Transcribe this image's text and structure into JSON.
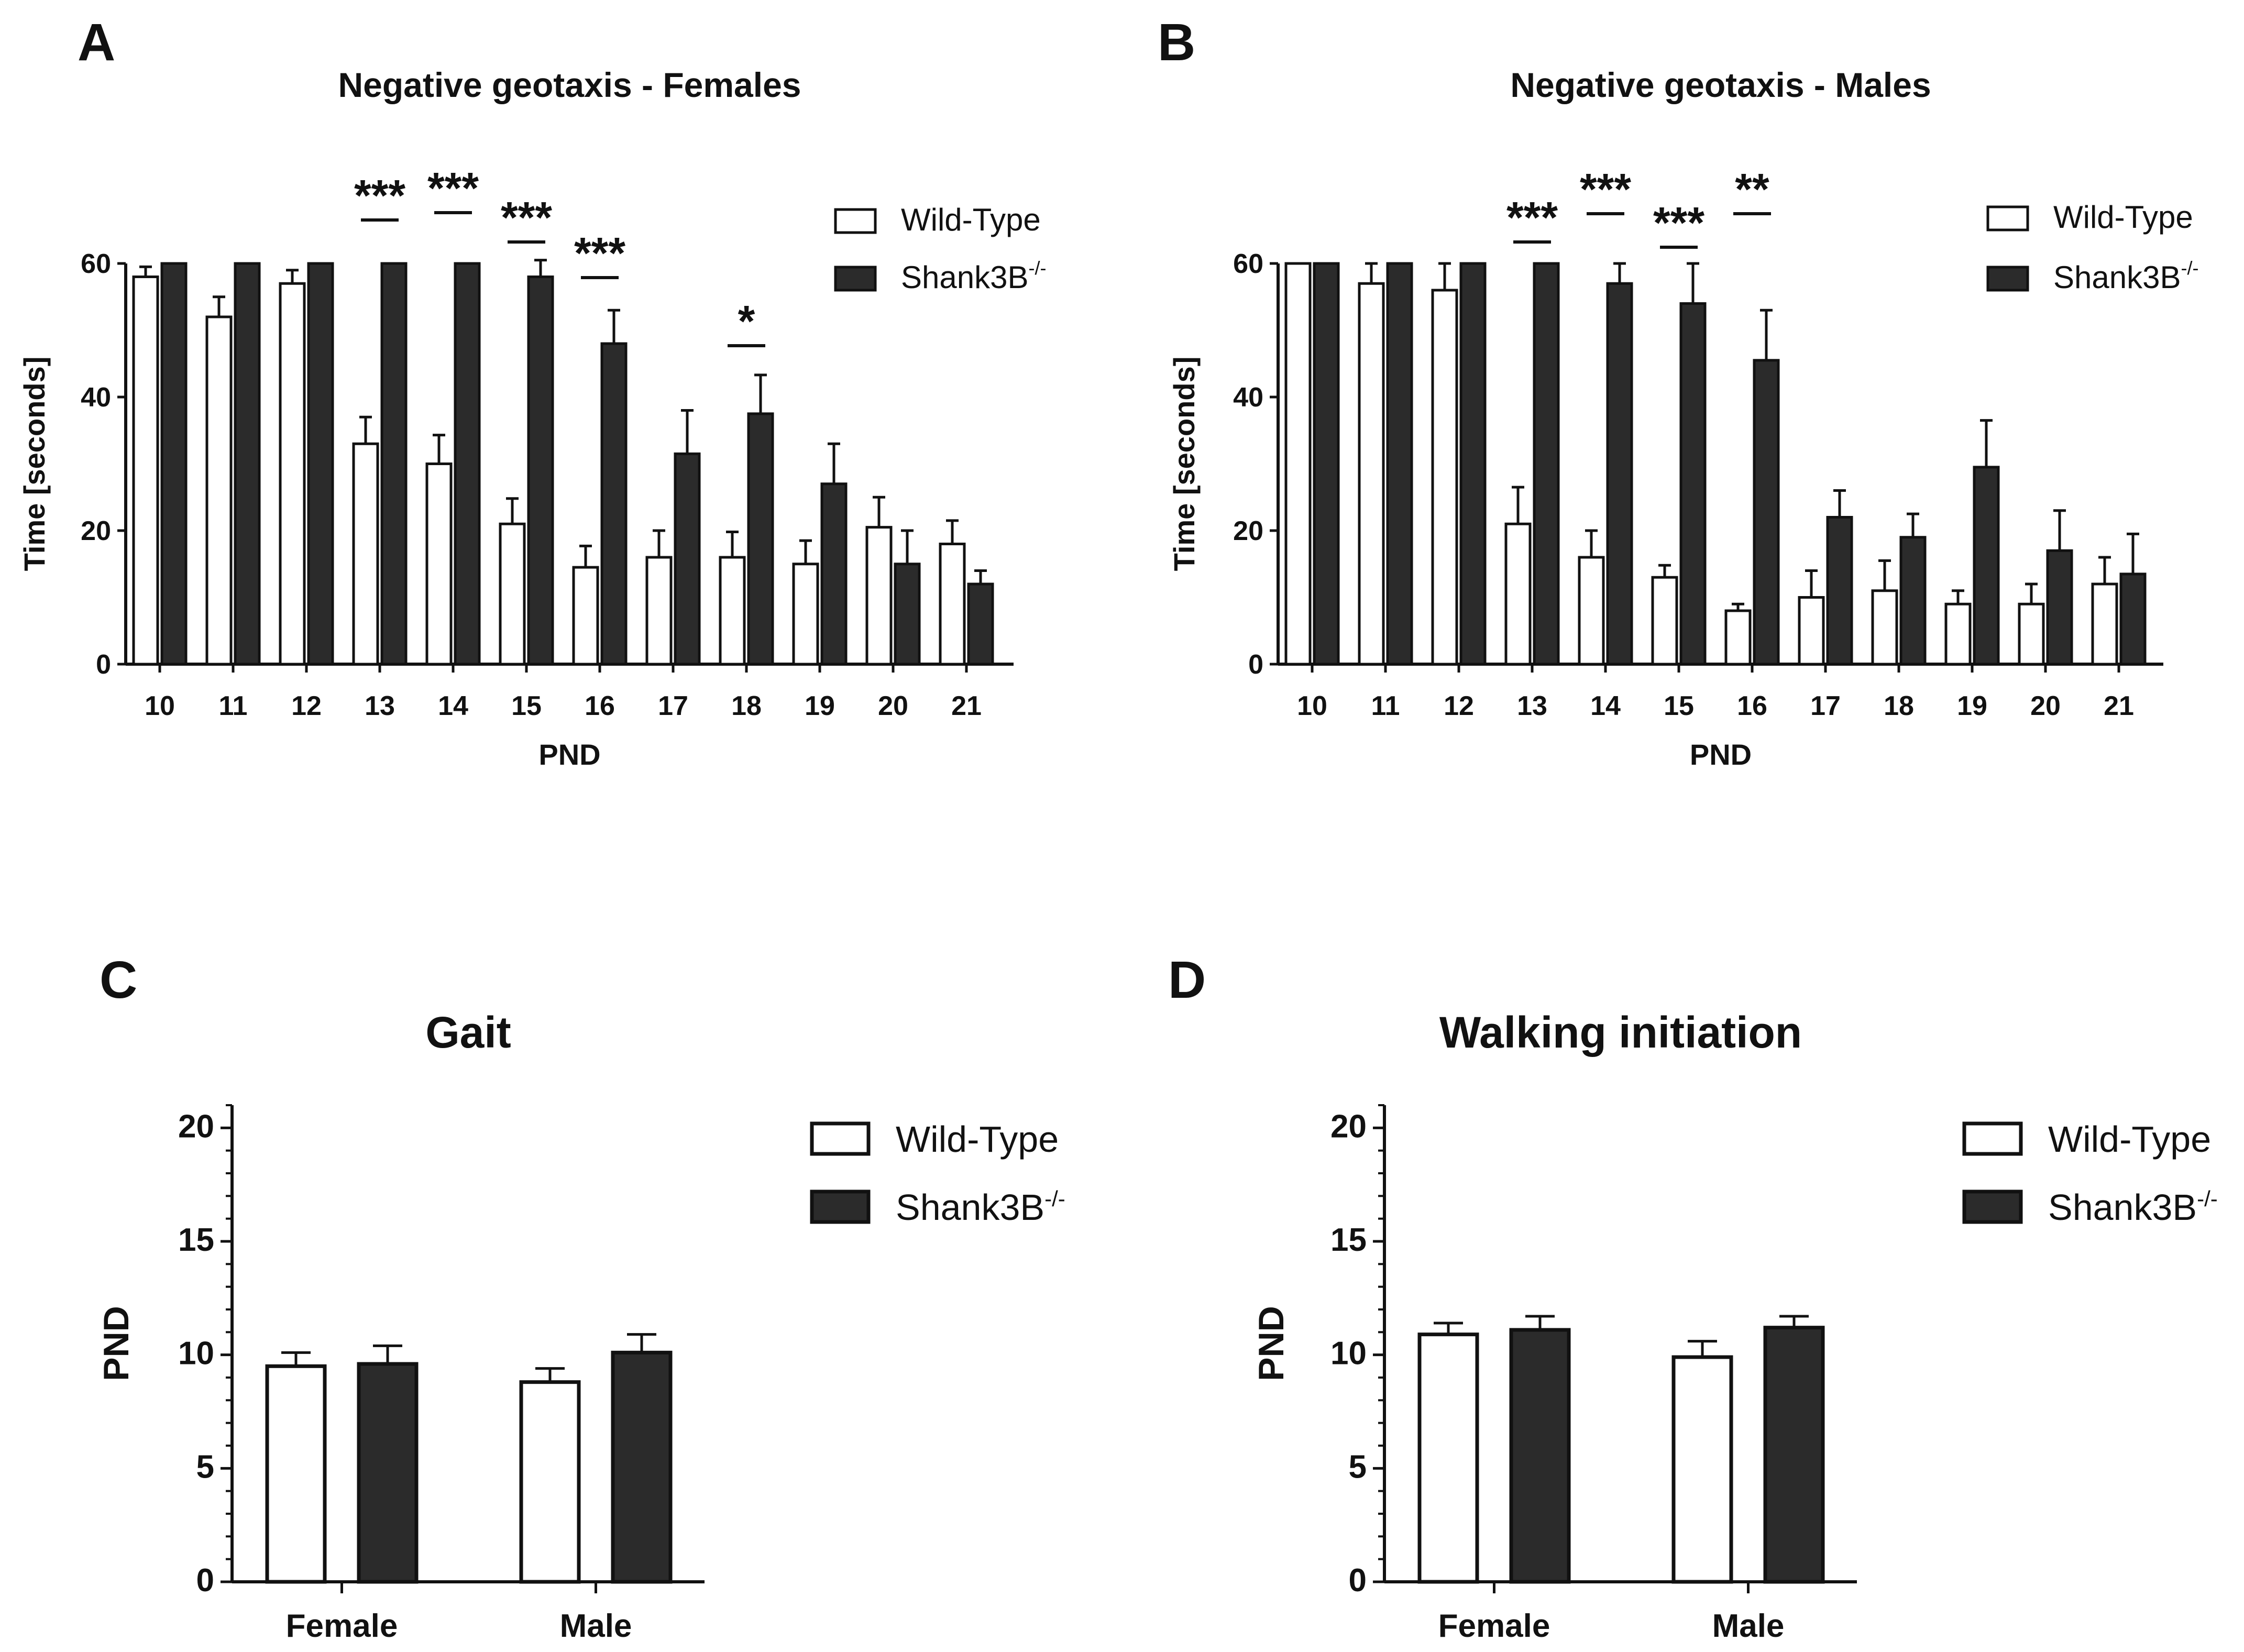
{
  "chart_data": [
    {
      "panel": "A",
      "type": "bar",
      "title": "Negative geotaxis - Females",
      "xlabel": "PND",
      "ylabel": "Time [seconds]",
      "ylim": [
        0,
        60
      ],
      "yticks": [
        0,
        20,
        40,
        60
      ],
      "categories": [
        "10",
        "11",
        "12",
        "13",
        "14",
        "15",
        "16",
        "17",
        "18",
        "19",
        "20",
        "21"
      ],
      "series": [
        {
          "name": "Wild-Type",
          "color": "#ffffff",
          "values": [
            58,
            52,
            57,
            33,
            30,
            21,
            14.5,
            16,
            16,
            15,
            20.5,
            18
          ],
          "errors": [
            1.5,
            3,
            2,
            4,
            4.3,
            3.8,
            3.2,
            4,
            3.8,
            3.5,
            4.5,
            3.5
          ]
        },
        {
          "name": "Shank3B",
          "name_sup": "-/-",
          "color": "#2b2b2b",
          "values": [
            60,
            60,
            60,
            60,
            60,
            58,
            48,
            31.5,
            37.5,
            27,
            15,
            12
          ],
          "errors": [
            0,
            0,
            0,
            0,
            0,
            2.5,
            5,
            6.5,
            5.8,
            6,
            5,
            2
          ]
        }
      ],
      "significance": [
        {
          "category": "13",
          "label": "***"
        },
        {
          "category": "14",
          "label": "***"
        },
        {
          "category": "15",
          "label": "***"
        },
        {
          "category": "16",
          "label": "***"
        },
        {
          "category": "18",
          "label": "*"
        }
      ]
    },
    {
      "panel": "B",
      "type": "bar",
      "title": "Negative geotaxis - Males",
      "xlabel": "PND",
      "ylabel": "Time [seconds]",
      "ylim": [
        0,
        60
      ],
      "yticks": [
        0,
        20,
        40,
        60
      ],
      "categories": [
        "10",
        "11",
        "12",
        "13",
        "14",
        "15",
        "16",
        "17",
        "18",
        "19",
        "20",
        "21"
      ],
      "series": [
        {
          "name": "Wild-Type",
          "color": "#ffffff",
          "values": [
            60,
            57,
            56,
            21,
            16,
            13,
            8,
            10,
            11,
            9,
            9,
            12
          ],
          "errors": [
            0,
            3,
            4,
            5.5,
            4,
            1.8,
            1,
            4,
            4.5,
            2,
            3,
            4
          ]
        },
        {
          "name": "Shank3B",
          "name_sup": "-/-",
          "color": "#2b2b2b",
          "values": [
            60,
            60,
            60,
            60,
            57,
            54,
            45.5,
            22,
            19,
            29.5,
            17,
            13.5
          ],
          "errors": [
            0,
            0,
            0,
            0,
            3,
            6,
            7.5,
            4,
            3.5,
            7,
            6,
            6
          ]
        }
      ],
      "significance": [
        {
          "category": "13",
          "label": "***"
        },
        {
          "category": "14",
          "label": "***"
        },
        {
          "category": "15",
          "label": "***"
        },
        {
          "category": "16",
          "label": "**"
        }
      ]
    },
    {
      "panel": "C",
      "type": "bar",
      "title": "Gait",
      "xlabel": "",
      "ylabel": "PND",
      "ylim": [
        0,
        21
      ],
      "yticks": [
        0,
        5,
        10,
        15,
        20
      ],
      "categories": [
        "Female",
        "Male"
      ],
      "series": [
        {
          "name": "Wild-Type",
          "color": "#ffffff",
          "values": [
            9.5,
            8.8
          ],
          "errors": [
            0.6,
            0.6
          ]
        },
        {
          "name": "Shank3B",
          "name_sup": "-/-",
          "color": "#2b2b2b",
          "values": [
            9.6,
            10.1
          ],
          "errors": [
            0.8,
            0.8
          ]
        }
      ]
    },
    {
      "panel": "D",
      "type": "bar",
      "title": "Walking initiation",
      "xlabel": "",
      "ylabel": "PND",
      "ylim": [
        0,
        21
      ],
      "yticks": [
        0,
        5,
        10,
        15,
        20
      ],
      "categories": [
        "Female",
        "Male"
      ],
      "series": [
        {
          "name": "Wild-Type",
          "color": "#ffffff",
          "values": [
            10.9,
            9.9
          ],
          "errors": [
            0.5,
            0.7
          ]
        },
        {
          "name": "Shank3B",
          "name_sup": "-/-",
          "color": "#2b2b2b",
          "values": [
            11.1,
            11.2
          ],
          "errors": [
            0.6,
            0.5
          ]
        }
      ]
    }
  ]
}
